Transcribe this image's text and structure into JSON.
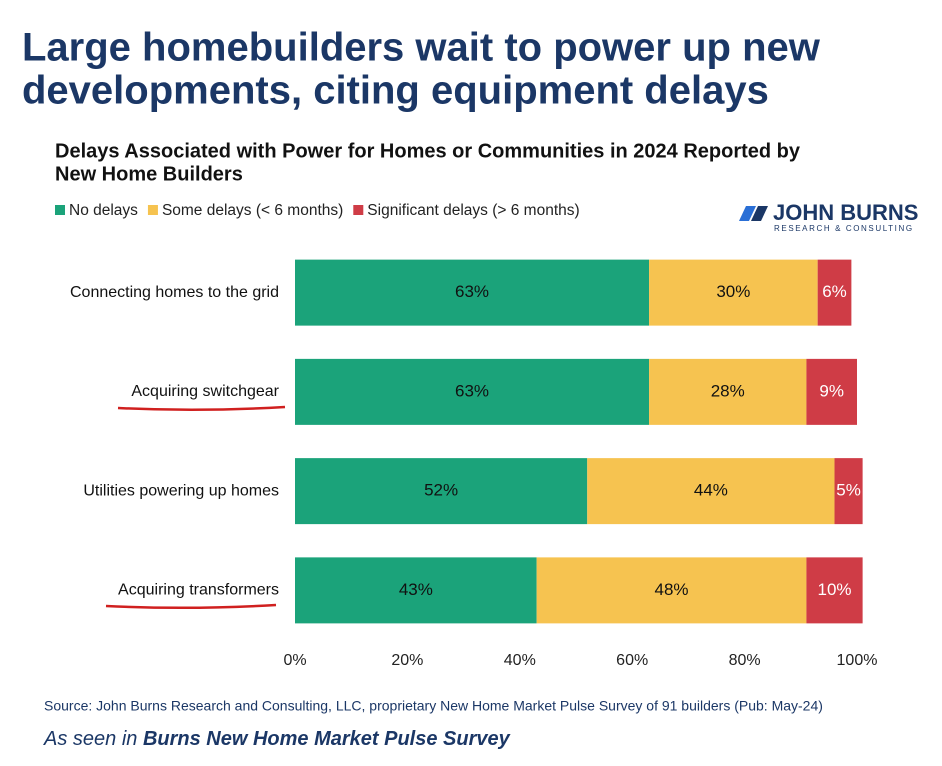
{
  "headline": [
    "Large homebuilders wait to power up new",
    "developments, citing equipment delays"
  ],
  "logo": {
    "name": "JOHN BURNS",
    "tagline": "RESEARCH & CONSULTING"
  },
  "chart_data": {
    "type": "stacked-bar-horizontal",
    "title": [
      "Delays Associated with Power for Homes or Communities in 2024 Reported by",
      "New Home Builders"
    ],
    "categories": [
      "Connecting homes to the grid",
      "Acquiring switchgear",
      "Utilities powering up homes",
      "Acquiring transformers"
    ],
    "series": [
      {
        "name": "No delays",
        "color": "#1ba37a",
        "values": [
          63,
          63,
          52,
          43
        ],
        "value_labels": [
          "63%",
          "63%",
          "52%",
          "43%"
        ]
      },
      {
        "name": "Some delays (< 6 months)",
        "color": "#f6c350",
        "values": [
          30,
          28,
          44,
          48
        ],
        "value_labels": [
          "30%",
          "28%",
          "44%",
          "48%"
        ]
      },
      {
        "name": "Significant delays (> 6 months)",
        "color": "#cf3c46",
        "values": [
          6,
          9,
          5,
          10
        ],
        "value_labels": [
          "6%",
          "9%",
          "5%",
          "10%"
        ]
      }
    ],
    "xlim": [
      0,
      100
    ],
    "xticks": [
      {
        "value": 0,
        "label": "0%"
      },
      {
        "value": 20,
        "label": "20%"
      },
      {
        "value": 40,
        "label": "40%"
      },
      {
        "value": 60,
        "label": "60%"
      },
      {
        "value": 80,
        "label": "80%"
      },
      {
        "value": 100,
        "label": "100%"
      }
    ],
    "legend": "top-left"
  },
  "source": "Source: John Burns Research and Consulting, LLC, proprietary New Home Market Pulse Survey of 91 builders (Pub: May-24)",
  "footnote": {
    "prefix": "As seen in",
    "emphasis": "Burns New Home Market Pulse Survey"
  }
}
